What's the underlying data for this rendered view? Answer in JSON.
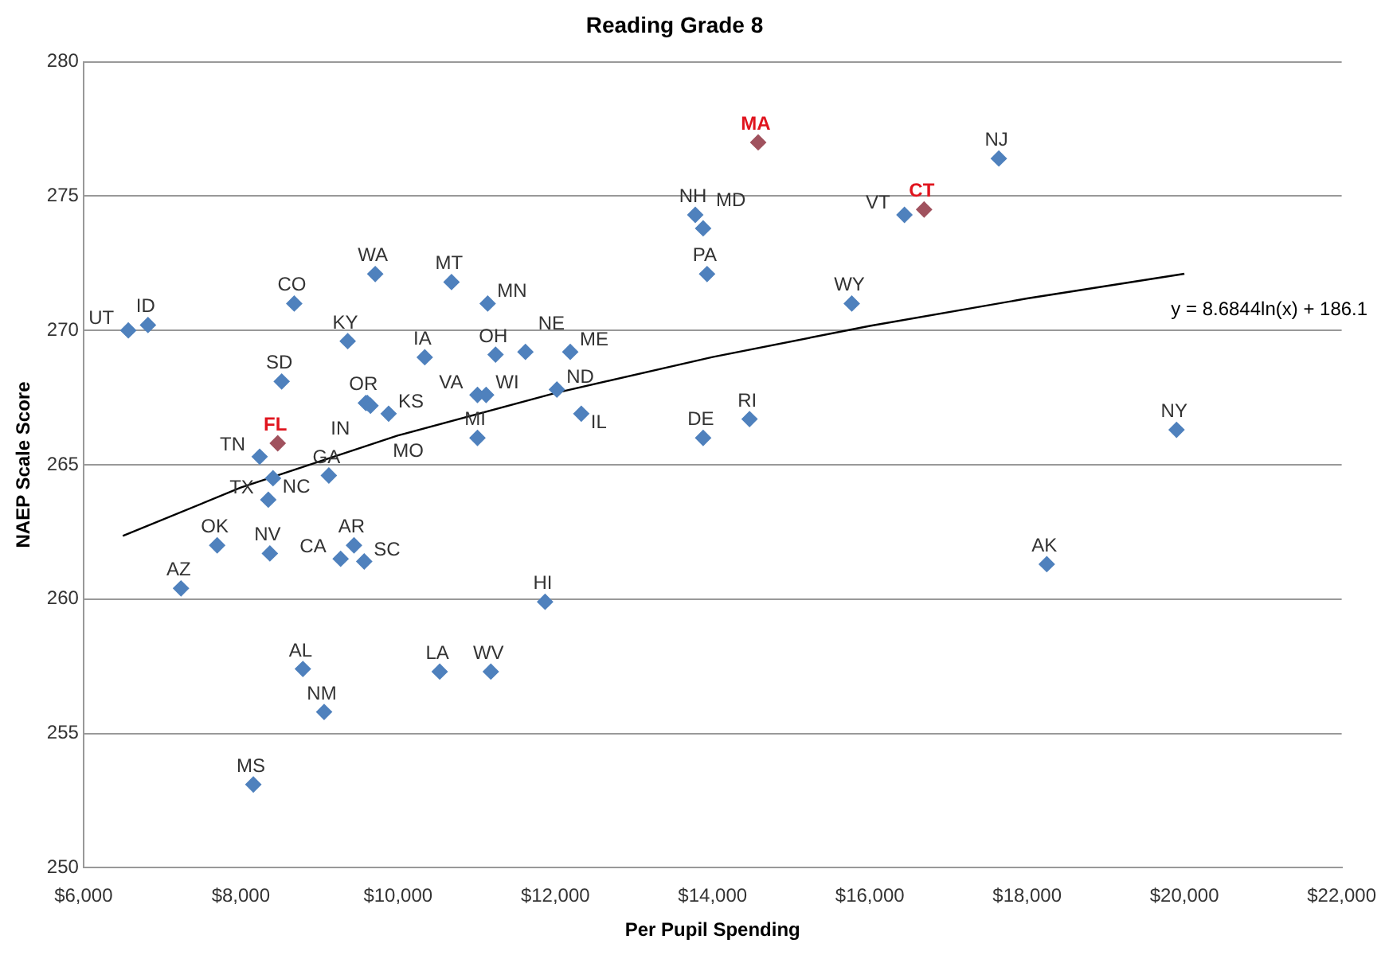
{
  "chart_data": {
    "type": "scatter",
    "title": "Reading Grade 8",
    "xlabel": "Per Pupil Spending",
    "ylabel": "NAEP Scale Score",
    "xlim": [
      6000,
      22000
    ],
    "xticks": [
      {
        "value": 6000,
        "label": "$6,000"
      },
      {
        "value": 8000,
        "label": "$8,000"
      },
      {
        "value": 10000,
        "label": "$10,000"
      },
      {
        "value": 12000,
        "label": "$12,000"
      },
      {
        "value": 14000,
        "label": "$14,000"
      },
      {
        "value": 16000,
        "label": "$16,000"
      },
      {
        "value": 18000,
        "label": "$18,000"
      },
      {
        "value": 20000,
        "label": "$20,000"
      },
      {
        "value": 22000,
        "label": "$22,000"
      }
    ],
    "ylim": [
      250,
      280
    ],
    "yticks": [
      250,
      255,
      260,
      265,
      270,
      275,
      280
    ],
    "grid": "y",
    "marker": "diamond",
    "legend": false,
    "series": [
      {
        "color": "#4f81bd",
        "x": [
          6570,
          6820,
          8680,
          9710,
          10680,
          11140,
          9360,
          10340,
          11240,
          11620,
          12190,
          9590,
          9610,
          9650,
          9880,
          8520,
          8240,
          8410,
          8350,
          9120,
          11010,
          11010,
          11120,
          12020,
          12330,
          13880,
          14470,
          13930,
          15770,
          13780,
          13880,
          16440,
          17640,
          19900,
          18250,
          7700,
          7240,
          8370,
          9440,
          9270,
          9570,
          11870,
          8790,
          9060,
          10530,
          11180,
          8160
        ],
        "values": [
          270.0,
          270.2,
          271.0,
          272.1,
          271.8,
          271.0,
          269.6,
          269.0,
          269.1,
          269.2,
          269.2,
          267.3,
          267.3,
          267.2,
          266.9,
          268.1,
          265.3,
          264.5,
          263.7,
          264.6,
          266.0,
          267.6,
          267.6,
          267.8,
          266.9,
          266.0,
          266.7,
          272.1,
          271.0,
          274.3,
          273.8,
          274.3,
          276.4,
          266.3,
          261.3,
          262.0,
          260.4,
          261.7,
          262.0,
          261.5,
          261.4,
          259.9,
          257.4,
          255.8,
          257.3,
          257.3,
          253.1
        ]
      },
      {
        "color": "#a0525e",
        "x": [
          8470,
          14580,
          16690
        ],
        "values": [
          265.8,
          277.0,
          274.5
        ]
      },
      {
        "type": "line",
        "color": "#000000",
        "marker": "none",
        "x": [
          6500,
          8000,
          10000,
          12000,
          14000,
          16000,
          18000,
          20000
        ],
        "values": [
          262.35,
          264.15,
          266.09,
          267.67,
          269.01,
          270.17,
          271.19,
          272.11
        ]
      }
    ],
    "annotations": [
      {
        "text": "UT",
        "x": 6570,
        "y": 270.0
      },
      {
        "text": "ID",
        "x": 6820,
        "y": 270.2
      },
      {
        "text": "CO",
        "x": 8680,
        "y": 271.0
      },
      {
        "text": "WA",
        "x": 9710,
        "y": 272.1
      },
      {
        "text": "MT",
        "x": 10680,
        "y": 271.8
      },
      {
        "text": "MN",
        "x": 11140,
        "y": 271.0
      },
      {
        "text": "KY",
        "x": 9360,
        "y": 269.6
      },
      {
        "text": "IA",
        "x": 10340,
        "y": 269.0
      },
      {
        "text": "OH",
        "x": 11240,
        "y": 269.1
      },
      {
        "text": "NE",
        "x": 11620,
        "y": 269.2
      },
      {
        "text": "ME",
        "x": 12190,
        "y": 269.2
      },
      {
        "text": "OR",
        "x": 9590,
        "y": 267.3
      },
      {
        "text": "IN",
        "x": 9610,
        "y": 267.3
      },
      {
        "text": "MO",
        "x": 9650,
        "y": 267.2
      },
      {
        "text": "KS",
        "x": 9880,
        "y": 266.9
      },
      {
        "text": "SD",
        "x": 8520,
        "y": 268.1
      },
      {
        "text": "TN",
        "x": 8240,
        "y": 265.3
      },
      {
        "text": "NC",
        "x": 8410,
        "y": 264.5
      },
      {
        "text": "TX",
        "x": 8350,
        "y": 263.7
      },
      {
        "text": "GA",
        "x": 9120,
        "y": 264.6
      },
      {
        "text": "MI",
        "x": 11010,
        "y": 266.0
      },
      {
        "text": "VA",
        "x": 11010,
        "y": 267.6
      },
      {
        "text": "WI",
        "x": 11120,
        "y": 267.6
      },
      {
        "text": "ND",
        "x": 12020,
        "y": 267.8
      },
      {
        "text": "IL",
        "x": 12330,
        "y": 266.9
      },
      {
        "text": "DE",
        "x": 13880,
        "y": 266.0
      },
      {
        "text": "RI",
        "x": 14470,
        "y": 266.7
      },
      {
        "text": "PA",
        "x": 13930,
        "y": 272.1
      },
      {
        "text": "WY",
        "x": 15770,
        "y": 271.0
      },
      {
        "text": "NH",
        "x": 13780,
        "y": 274.3
      },
      {
        "text": "MD",
        "x": 13880,
        "y": 273.8
      },
      {
        "text": "VT",
        "x": 16440,
        "y": 274.3
      },
      {
        "text": "NJ",
        "x": 17640,
        "y": 276.4
      },
      {
        "text": "NY",
        "x": 19900,
        "y": 266.3
      },
      {
        "text": "AK",
        "x": 18250,
        "y": 261.3
      },
      {
        "text": "OK",
        "x": 7700,
        "y": 262.0
      },
      {
        "text": "AZ",
        "x": 7240,
        "y": 260.4
      },
      {
        "text": "NV",
        "x": 8370,
        "y": 261.7
      },
      {
        "text": "AR",
        "x": 9440,
        "y": 262.0
      },
      {
        "text": "CA",
        "x": 9270,
        "y": 261.5
      },
      {
        "text": "SC",
        "x": 9570,
        "y": 261.4
      },
      {
        "text": "HI",
        "x": 11870,
        "y": 259.9
      },
      {
        "text": "AL",
        "x": 8790,
        "y": 257.4
      },
      {
        "text": "NM",
        "x": 9060,
        "y": 255.8
      },
      {
        "text": "LA",
        "x": 10530,
        "y": 257.3
      },
      {
        "text": "WV",
        "x": 11180,
        "y": 257.3
      },
      {
        "text": "MS",
        "x": 8160,
        "y": 253.1
      },
      {
        "text": "FL",
        "x": 8470,
        "y": 265.8
      },
      {
        "text": "MA",
        "x": 14580,
        "y": 277.0
      },
      {
        "text": "CT",
        "x": 16690,
        "y": 274.5
      },
      {
        "text": "y = 8.6844ln(x) + 186.1",
        "x": 20000,
        "y": 272.11
      }
    ]
  }
}
